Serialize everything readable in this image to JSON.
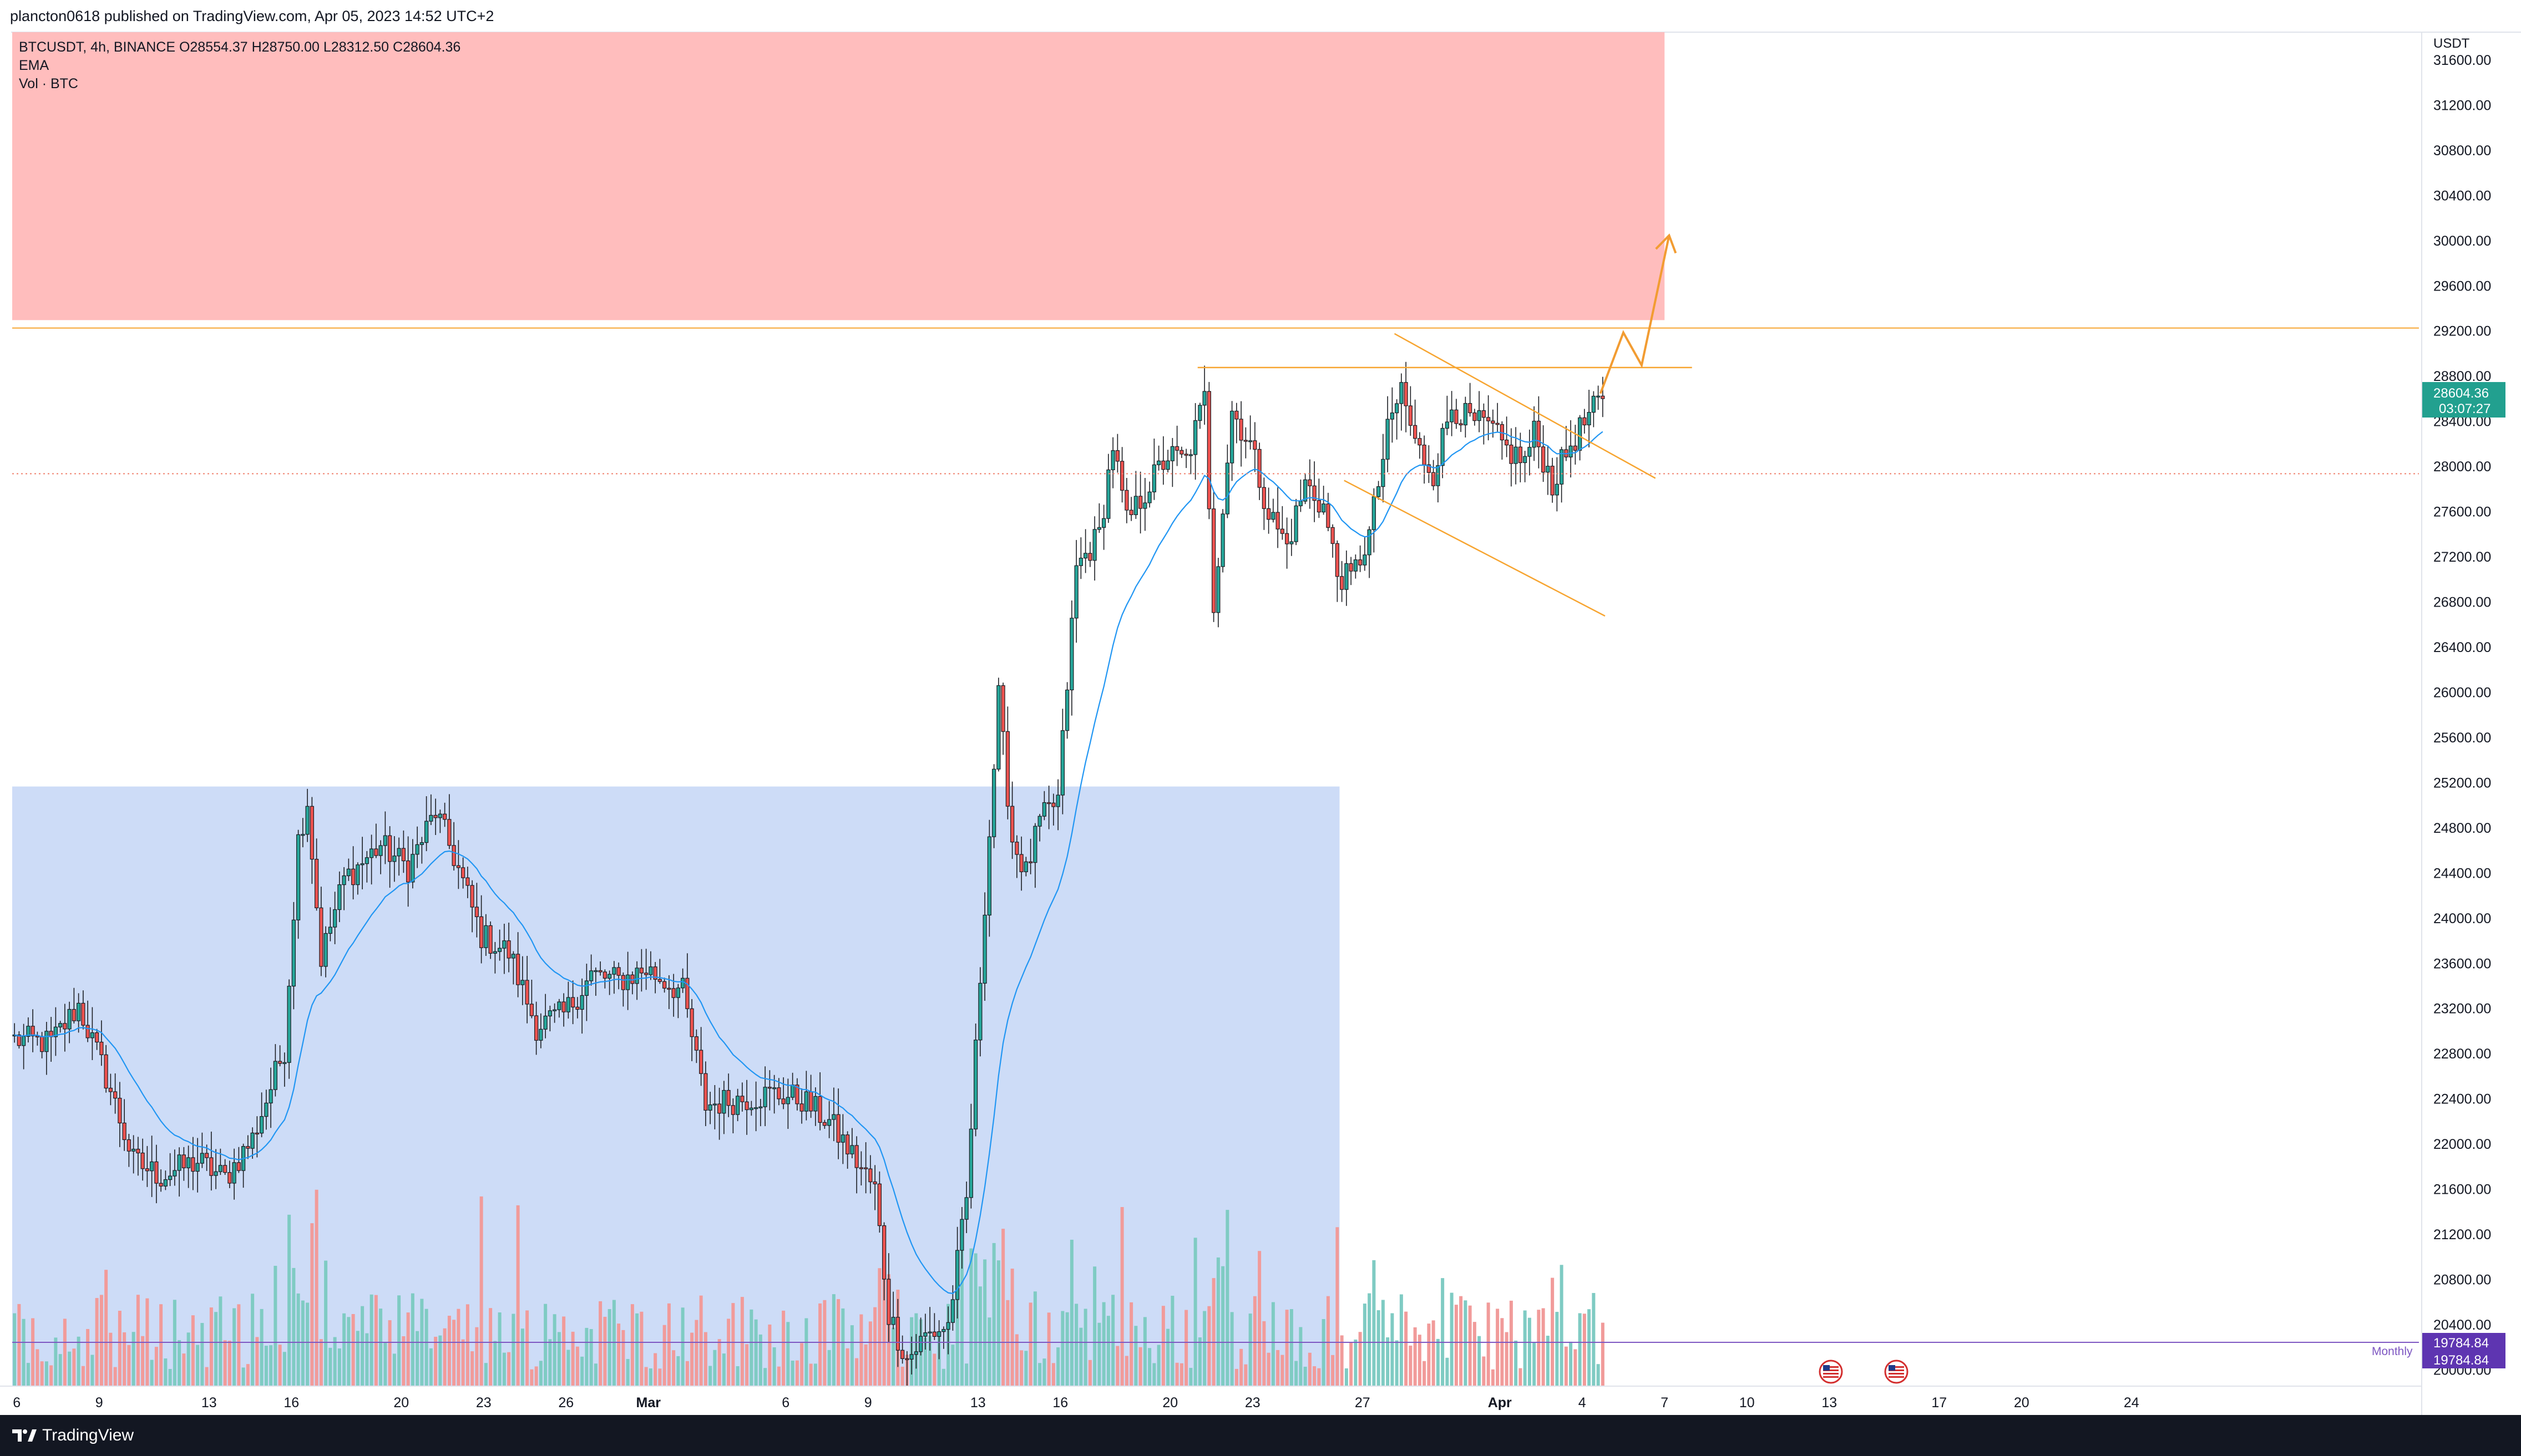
{
  "header": {
    "published": "plancton0618 published on TradingView.com, Apr 05, 2023 14:52 UTC+2"
  },
  "legend": {
    "symbol_line": "BTCUSDT, 4h, BINANCE  O28554.37  H28750.00  L28312.50  C28604.36",
    "ema_label": "EMA",
    "vol_label": "Vol · BTC"
  },
  "footer": {
    "brand": "TradingView",
    "logo_icon": "tradingview-logo-icon"
  },
  "colors": {
    "up": "#26a69a",
    "down": "#ef5350",
    "ema": "#2196f3",
    "orange": "#f7a531",
    "supply_zone": "#ffbdbd",
    "demand_zone": "#cddcf7",
    "monthly": "#7e57c2",
    "price_tag": "#22a08f"
  },
  "chart_data": {
    "type": "candlestick",
    "symbol": "BTCUSDT",
    "interval": "4h",
    "exchange": "BINANCE",
    "currency_label": "USDT",
    "ohlc_last": {
      "open": 28554.37,
      "high": 28750.0,
      "low": 28312.5,
      "close": 28604.36
    },
    "y_range": [
      19860,
      31850
    ],
    "y_ticks": [
      "31600.00",
      "31200.00",
      "30800.00",
      "30400.00",
      "30000.00",
      "29600.00",
      "29200.00",
      "28800.00",
      "28400.00",
      "28000.00",
      "27600.00",
      "27200.00",
      "26800.00",
      "26400.00",
      "26000.00",
      "25600.00",
      "25200.00",
      "24800.00",
      "24400.00",
      "24000.00",
      "23600.00",
      "23200.00",
      "22800.00",
      "22400.00",
      "22000.00",
      "21600.00",
      "21200.00",
      "20800.00",
      "20400.00",
      "20000.00"
    ],
    "x_ticks": [
      {
        "label": "6",
        "bar": 1
      },
      {
        "label": "9",
        "bar": 19
      },
      {
        "label": "13",
        "bar": 43
      },
      {
        "label": "16",
        "bar": 61
      },
      {
        "label": "20",
        "bar": 85
      },
      {
        "label": "23",
        "bar": 103
      },
      {
        "label": "26",
        "bar": 121
      },
      {
        "label": "Mar",
        "bar": 139
      },
      {
        "label": "6",
        "bar": 169
      },
      {
        "label": "9",
        "bar": 187
      },
      {
        "label": "13",
        "bar": 211
      },
      {
        "label": "16",
        "bar": 229
      },
      {
        "label": "20",
        "bar": 253
      },
      {
        "label": "23",
        "bar": 271
      },
      {
        "label": "27",
        "bar": 295
      },
      {
        "label": "Apr",
        "bar": 325
      },
      {
        "label": "4",
        "bar": 343
      },
      {
        "label": "7",
        "bar": 361
      },
      {
        "label": "10",
        "bar": 379
      },
      {
        "label": "13",
        "bar": 397
      },
      {
        "label": "17",
        "bar": 421
      },
      {
        "label": "20",
        "bar": 439
      },
      {
        "label": "24",
        "bar": 463
      }
    ],
    "x_bold": [
      "Mar",
      "Apr"
    ],
    "keypoints": [
      {
        "bar": 0,
        "price": 22930
      },
      {
        "bar": 8,
        "price": 22900
      },
      {
        "bar": 14,
        "price": 23230
      },
      {
        "bar": 20,
        "price": 22600
      },
      {
        "bar": 26,
        "price": 21850
      },
      {
        "bar": 32,
        "price": 21720
      },
      {
        "bar": 40,
        "price": 21850
      },
      {
        "bar": 46,
        "price": 21700
      },
      {
        "bar": 52,
        "price": 22050
      },
      {
        "bar": 59,
        "price": 22850
      },
      {
        "bar": 62,
        "price": 24700
      },
      {
        "bar": 64,
        "price": 25050
      },
      {
        "bar": 67,
        "price": 23650
      },
      {
        "bar": 72,
        "price": 24350
      },
      {
        "bar": 80,
        "price": 24650
      },
      {
        "bar": 86,
        "price": 24450
      },
      {
        "bar": 92,
        "price": 24950
      },
      {
        "bar": 96,
        "price": 24550
      },
      {
        "bar": 102,
        "price": 23850
      },
      {
        "bar": 108,
        "price": 23700
      },
      {
        "bar": 114,
        "price": 23050
      },
      {
        "bar": 120,
        "price": 23150
      },
      {
        "bar": 126,
        "price": 23500
      },
      {
        "bar": 132,
        "price": 23450
      },
      {
        "bar": 138,
        "price": 23550
      },
      {
        "bar": 146,
        "price": 23350
      },
      {
        "bar": 151,
        "price": 22350
      },
      {
        "bar": 158,
        "price": 22400
      },
      {
        "bar": 166,
        "price": 22450
      },
      {
        "bar": 172,
        "price": 22400
      },
      {
        "bar": 178,
        "price": 22200
      },
      {
        "bar": 184,
        "price": 21850
      },
      {
        "bar": 188,
        "price": 21600
      },
      {
        "bar": 191,
        "price": 20500
      },
      {
        "bar": 195,
        "price": 20100
      },
      {
        "bar": 199,
        "price": 20300
      },
      {
        "bar": 204,
        "price": 20400
      },
      {
        "bar": 208,
        "price": 21500
      },
      {
        "bar": 212,
        "price": 24150
      },
      {
        "bar": 215,
        "price": 25950
      },
      {
        "bar": 218,
        "price": 24700
      },
      {
        "bar": 221,
        "price": 24400
      },
      {
        "bar": 224,
        "price": 24850
      },
      {
        "bar": 228,
        "price": 25050
      },
      {
        "bar": 232,
        "price": 27100
      },
      {
        "bar": 237,
        "price": 27400
      },
      {
        "bar": 240,
        "price": 28200
      },
      {
        "bar": 243,
        "price": 27500
      },
      {
        "bar": 248,
        "price": 27850
      },
      {
        "bar": 252,
        "price": 28100
      },
      {
        "bar": 256,
        "price": 28050
      },
      {
        "bar": 260,
        "price": 28600
      },
      {
        "bar": 262,
        "price": 26800
      },
      {
        "bar": 266,
        "price": 28500
      },
      {
        "bar": 270,
        "price": 28200
      },
      {
        "bar": 274,
        "price": 27600
      },
      {
        "bar": 278,
        "price": 27300
      },
      {
        "bar": 282,
        "price": 27850
      },
      {
        "bar": 286,
        "price": 27650
      },
      {
        "bar": 289,
        "price": 27050
      },
      {
        "bar": 292,
        "price": 27000
      },
      {
        "bar": 296,
        "price": 27400
      },
      {
        "bar": 300,
        "price": 28300
      },
      {
        "bar": 303,
        "price": 28700
      },
      {
        "bar": 306,
        "price": 28200
      },
      {
        "bar": 310,
        "price": 27950
      },
      {
        "bar": 314,
        "price": 28550
      },
      {
        "bar": 318,
        "price": 28400
      },
      {
        "bar": 322,
        "price": 28350
      },
      {
        "bar": 326,
        "price": 28150
      },
      {
        "bar": 330,
        "price": 28050
      },
      {
        "bar": 332,
        "price": 28300
      },
      {
        "bar": 336,
        "price": 27850
      },
      {
        "bar": 340,
        "price": 28200
      },
      {
        "bar": 344,
        "price": 28450
      },
      {
        "bar": 347,
        "price": 28604.36
      }
    ],
    "overlays": {
      "supply_zone": {
        "y_top": 31850,
        "y_bottom": 29300,
        "bar_start": 0,
        "bar_end": 361
      },
      "demand_zone": {
        "y_top": 25170,
        "y_bottom": 19860,
        "bar_start": 0,
        "bar_end": 290
      },
      "resistance_line": {
        "price": 29230
      },
      "dotted_level": {
        "price": 27940
      },
      "breakout_line": {
        "price": 28880,
        "bar_start": 259,
        "bar_end": 367
      },
      "channel_upper": [
        {
          "bar": 302,
          "price": 29180
        },
        {
          "bar": 359,
          "price": 27900
        }
      ],
      "channel_lower": [
        {
          "bar": 291,
          "price": 27880
        },
        {
          "bar": 348,
          "price": 26680
        }
      ],
      "projection": [
        {
          "bar": 347,
          "price": 28650
        },
        {
          "bar": 352,
          "price": 29190
        },
        {
          "bar": 356,
          "price": 28900
        },
        {
          "bar": 362,
          "price": 30050
        }
      ]
    },
    "current_price_label": "28604.36",
    "countdown": "03:07:27",
    "monthly_level": {
      "label": "Monthly",
      "value": "19784.84"
    },
    "event_icons": [
      "us-flag-icon",
      "us-flag-icon"
    ]
  }
}
